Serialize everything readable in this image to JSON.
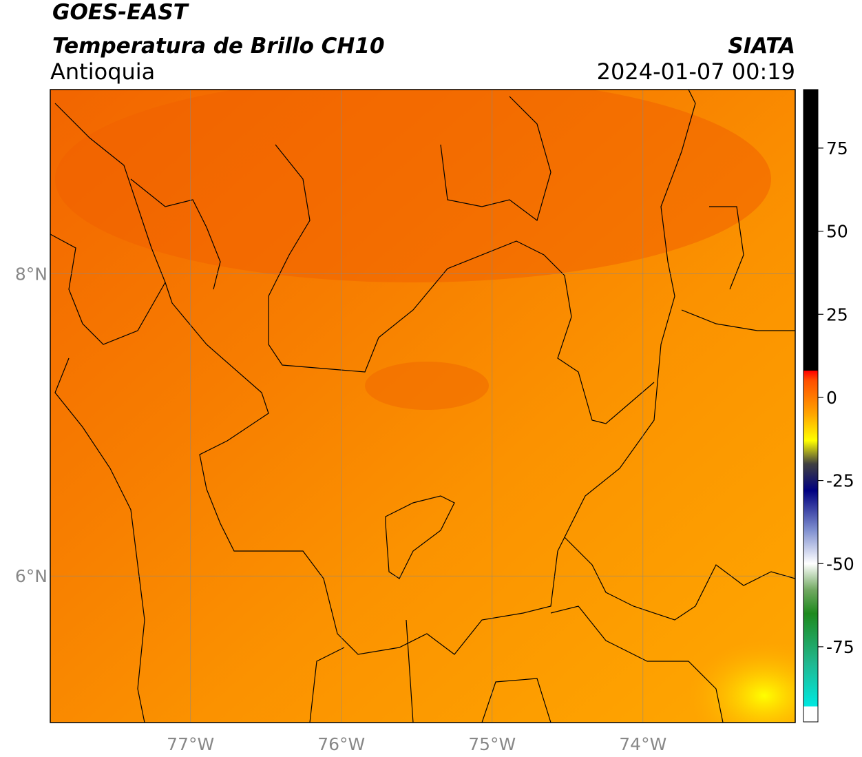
{
  "header": {
    "title": "GOES-EAST",
    "subtitle": "Temperatura de Brillo CH10",
    "region": "Antioquia",
    "source": "SIATA",
    "datetime": "2024-01-07 00:19"
  },
  "map": {
    "lon_range": [
      -77.93,
      -72.99
    ],
    "lat_range": [
      5.03,
      9.22
    ],
    "lon_ticks": [
      {
        "value": -77,
        "label": "77°W"
      },
      {
        "value": -76,
        "label": "76°W"
      },
      {
        "value": -75,
        "label": "75°W"
      },
      {
        "value": -74,
        "label": "74°W"
      }
    ],
    "lat_ticks": [
      {
        "value": 8,
        "label": "8°N"
      },
      {
        "value": 6,
        "label": "6°N"
      }
    ]
  },
  "colorbar": {
    "range": [
      -97.6,
      92.6
    ],
    "ticks": [
      75,
      50,
      25,
      0,
      -25,
      -50,
      -75
    ],
    "colormap": [
      {
        "value": -97.6,
        "color": "#ffffff"
      },
      {
        "value": -93,
        "color": "#ffffff"
      },
      {
        "value": -92.9,
        "color": "#00e8e0"
      },
      {
        "value": -80,
        "color": "#20b890"
      },
      {
        "value": -65,
        "color": "#1e8a1e"
      },
      {
        "value": -58,
        "color": "#70a860"
      },
      {
        "value": -50,
        "color": "#ffffff"
      },
      {
        "value": -40,
        "color": "#8090d0"
      },
      {
        "value": -28,
        "color": "#000080"
      },
      {
        "value": -20,
        "color": "#404040"
      },
      {
        "value": -13,
        "color": "#ffff00"
      },
      {
        "value": -5,
        "color": "#ffa500"
      },
      {
        "value": 5,
        "color": "#ff5000"
      },
      {
        "value": 8,
        "color": "#ff0000"
      },
      {
        "value": 8.1,
        "color": "#000000"
      },
      {
        "value": 92.6,
        "color": "#000000"
      }
    ]
  }
}
